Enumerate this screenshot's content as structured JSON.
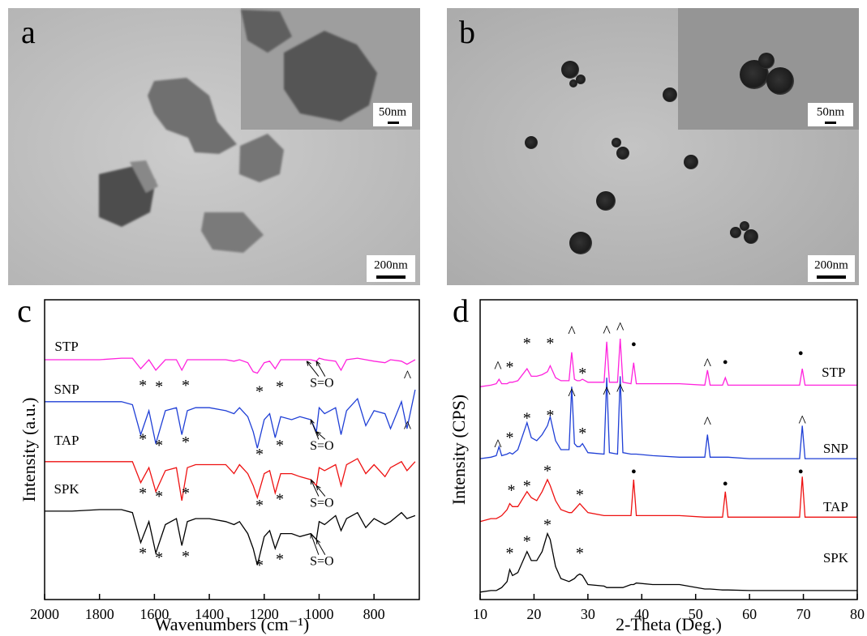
{
  "panels": [
    {
      "label": "a",
      "inset_scale": "50nm",
      "scale": "200nm"
    },
    {
      "label": "b",
      "inset_scale": "50nm",
      "scale": "200nm"
    }
  ],
  "chart_data": [
    {
      "type": "line",
      "panel_label": "c",
      "xlabel": "Wavenumbers (cm⁻¹)",
      "ylabel": "Intensity (a.u.)",
      "xlim": [
        2000,
        635
      ],
      "ylim": [
        0,
        100
      ],
      "xticks": [
        2000,
        1800,
        1600,
        1400,
        1200,
        1000,
        800
      ],
      "x": [
        2000,
        1900,
        1800,
        1720,
        1680,
        1650,
        1620,
        1595,
        1560,
        1520,
        1500,
        1480,
        1450,
        1400,
        1340,
        1310,
        1290,
        1260,
        1240,
        1225,
        1200,
        1180,
        1160,
        1140,
        1100,
        1070,
        1030,
        1010,
        1000,
        980,
        940,
        920,
        900,
        860,
        830,
        800,
        760,
        740,
        700,
        680,
        650
      ],
      "series": [
        {
          "name": "STP",
          "color": "#ff22dd",
          "label_at": [
            1920,
            84
          ],
          "values": [
            80,
            80,
            80,
            80.5,
            80.5,
            77,
            80,
            76.5,
            80,
            80,
            76.5,
            80,
            80,
            80,
            80,
            79.5,
            80,
            79,
            76,
            75.5,
            79,
            79.5,
            77,
            80,
            80,
            80,
            80,
            79.5,
            80.5,
            80,
            79.5,
            76.5,
            80,
            80.5,
            80,
            79.5,
            79,
            80,
            79.5,
            78.5,
            80
          ]
        },
        {
          "name": "SNP",
          "color": "#1f3fd6",
          "label_at": [
            1920,
            69.7
          ],
          "values": [
            66,
            66,
            66,
            66,
            65,
            55,
            63,
            52,
            63,
            64,
            55,
            63,
            64,
            64,
            63,
            62,
            64,
            61,
            56,
            50.5,
            60,
            62,
            54,
            61,
            60,
            61,
            60,
            56,
            64,
            62,
            64,
            55,
            63,
            67,
            58,
            63,
            62,
            57,
            66,
            57,
            70
          ]
        },
        {
          "name": "TAP",
          "color": "#ee1111",
          "label_at": [
            1920,
            52.7
          ],
          "values": [
            46,
            46,
            46,
            46,
            46,
            39,
            44,
            36,
            43,
            44,
            33,
            44,
            45,
            45,
            45,
            42,
            45,
            42,
            38,
            34,
            42,
            43,
            35.5,
            42,
            42,
            41,
            40,
            38,
            44,
            43,
            45,
            38,
            45,
            47,
            42,
            45,
            41,
            44,
            46,
            43,
            46
          ]
        },
        {
          "name": "SPK",
          "color": "#000000",
          "label_at": [
            1920,
            36.5
          ],
          "values": [
            29.5,
            29.5,
            30,
            30,
            29,
            19,
            26,
            15.5,
            25,
            27,
            18,
            26,
            27,
            27,
            26,
            25,
            26,
            22,
            17,
            11.5,
            21,
            23,
            17,
            22,
            22,
            21,
            22,
            20,
            26,
            25,
            28,
            23,
            27,
            29,
            24,
            27,
            25,
            26,
            29,
            27,
            28
          ]
        }
      ],
      "annotations": [
        {
          "text": "*",
          "x": 1642,
          "y": 71
        },
        {
          "text": "*",
          "x": 1583,
          "y": 70.5
        },
        {
          "text": "*",
          "x": 1486,
          "y": 71
        },
        {
          "text": "*",
          "x": 1217,
          "y": 69
        },
        {
          "text": "*",
          "x": 1143,
          "y": 70.5
        },
        {
          "text": "S=O",
          "x": 990,
          "y": 72,
          "arrows": [
            [
              1045,
              79.5
            ],
            [
              1010,
              79.5
            ]
          ]
        },
        {
          "text": "^",
          "x": 678,
          "y": 74
        },
        {
          "text": "*",
          "x": 1642,
          "y": 53
        },
        {
          "text": "*",
          "x": 1583,
          "y": 51
        },
        {
          "text": "*",
          "x": 1486,
          "y": 52
        },
        {
          "text": "*",
          "x": 1217,
          "y": 48
        },
        {
          "text": "*",
          "x": 1143,
          "y": 51
        },
        {
          "text": "S=O",
          "x": 990,
          "y": 51,
          "arrows": [
            [
              1030,
              60
            ],
            [
              1010,
              56
            ]
          ]
        },
        {
          "text": "^",
          "x": 678,
          "y": 57
        },
        {
          "text": "*",
          "x": 1642,
          "y": 35
        },
        {
          "text": "*",
          "x": 1583,
          "y": 34
        },
        {
          "text": "*",
          "x": 1486,
          "y": 35
        },
        {
          "text": "*",
          "x": 1217,
          "y": 31
        },
        {
          "text": "*",
          "x": 1143,
          "y": 33
        },
        {
          "text": "S=O",
          "x": 990,
          "y": 32,
          "arrows": [
            [
              1030,
              40
            ],
            [
              1010,
              38
            ]
          ]
        },
        {
          "text": "*",
          "x": 1642,
          "y": 15
        },
        {
          "text": "*",
          "x": 1583,
          "y": 13.5
        },
        {
          "text": "*",
          "x": 1486,
          "y": 14
        },
        {
          "text": "*",
          "x": 1217,
          "y": 11
        },
        {
          "text": "*",
          "x": 1143,
          "y": 13
        },
        {
          "text": "S=O",
          "x": 990,
          "y": 12.5,
          "arrows": [
            [
              1030,
              22
            ],
            [
              1010,
              20
            ]
          ]
        }
      ]
    },
    {
      "type": "line",
      "panel_label": "d",
      "xlabel": "2-Theta (Deg.)",
      "ylabel": "Intensity (CPS)",
      "xlim": [
        10,
        80
      ],
      "ylim": [
        0,
        100
      ],
      "xticks": [
        10,
        20,
        30,
        40,
        50,
        60,
        70,
        80
      ],
      "x": [
        10,
        12,
        13,
        13.5,
        14,
        15,
        15.5,
        16,
        17,
        18.7,
        19.5,
        20.5,
        21.5,
        22.5,
        23,
        24,
        25,
        26.5,
        27,
        27.5,
        28,
        28.5,
        29,
        30,
        33,
        33.5,
        34,
        35.5,
        36,
        36.5,
        38,
        38.5,
        39,
        42,
        47,
        51.7,
        52.2,
        52.7,
        55,
        55.5,
        56,
        60,
        65,
        69.3,
        69.8,
        70.3,
        75,
        80
      ],
      "series": [
        {
          "name": "STP",
          "color": "#ff22dd",
          "label_at": [
            75.6,
            75.4
          ],
          "values": [
            71,
            71.5,
            72,
            73.5,
            72,
            72,
            72.5,
            72.5,
            73,
            77,
            74.5,
            74.5,
            75,
            76,
            78,
            74,
            73,
            73,
            82.5,
            73.5,
            73,
            73,
            73.5,
            72.5,
            72.5,
            86,
            72.5,
            72.5,
            87,
            72.5,
            72,
            79,
            72,
            72,
            72,
            71.5,
            76.5,
            71.5,
            71.5,
            74,
            71.5,
            71.5,
            71.5,
            71.5,
            77,
            71.5,
            71.5,
            71.5
          ]
        },
        {
          "name": "SNP",
          "color": "#1f3fd6",
          "label_at": [
            76,
            50
          ],
          "values": [
            47,
            47.5,
            48,
            51,
            48,
            48.5,
            49,
            48.5,
            50,
            59,
            54,
            53,
            55,
            58,
            61,
            53,
            50,
            50,
            71,
            52,
            51,
            51,
            52,
            49,
            48.5,
            74,
            49,
            48.5,
            74.5,
            49,
            48.5,
            48.5,
            48.5,
            48,
            47.5,
            47.5,
            55,
            47.5,
            47.5,
            47.5,
            47.5,
            47,
            47,
            47,
            58,
            47,
            47,
            47
          ]
        },
        {
          "name": "TAP",
          "color": "#ee1111",
          "label_at": [
            76,
            30.5
          ],
          "values": [
            26,
            27,
            27,
            27.5,
            28,
            30,
            32,
            31,
            31,
            36,
            34,
            33,
            36,
            40,
            38,
            33,
            30,
            29,
            29,
            30,
            31,
            32,
            31,
            29,
            28,
            28,
            28,
            28,
            28,
            28,
            28,
            40,
            28,
            28,
            28,
            27.5,
            27.5,
            27.5,
            27.5,
            36,
            27.5,
            27.5,
            27.5,
            27.5,
            41,
            27.5,
            27.5,
            27.5
          ]
        },
        {
          "name": "SPK",
          "color": "#000000",
          "label_at": [
            76,
            13.5
          ],
          "values": [
            2.5,
            3,
            3,
            3.5,
            4,
            6,
            10,
            8,
            9,
            16,
            13,
            13,
            16,
            22,
            20,
            11,
            7,
            6,
            6.5,
            7,
            8,
            8.5,
            8,
            5,
            4.5,
            4,
            4,
            4,
            4,
            4,
            5,
            5,
            5.5,
            5,
            5,
            3.5,
            3.5,
            3.5,
            3.2,
            3.2,
            3.2,
            3,
            3,
            3,
            3,
            3,
            3,
            3
          ]
        }
      ],
      "annotations": [
        {
          "text": "^",
          "x": 13.3,
          "y": 77
        },
        {
          "text": "*",
          "x": 15.5,
          "y": 77
        },
        {
          "text": "*",
          "x": 18.7,
          "y": 85
        },
        {
          "text": "*",
          "x": 23,
          "y": 85
        },
        {
          "text": "^",
          "x": 27,
          "y": 88.8
        },
        {
          "text": "*",
          "x": 29,
          "y": 75
        },
        {
          "text": "^",
          "x": 33.5,
          "y": 89
        },
        {
          "text": "^",
          "x": 36,
          "y": 90
        },
        {
          "text": "•",
          "x": 38.5,
          "y": 84.5
        },
        {
          "text": "^",
          "x": 52.2,
          "y": 78
        },
        {
          "text": "•",
          "x": 55.5,
          "y": 78.5
        },
        {
          "text": "•",
          "x": 69.5,
          "y": 81.5
        },
        {
          "text": "^",
          "x": 13.3,
          "y": 51
        },
        {
          "text": "*",
          "x": 15.5,
          "y": 53.5
        },
        {
          "text": "*",
          "x": 18.7,
          "y": 60
        },
        {
          "text": "*",
          "x": 23,
          "y": 61
        },
        {
          "text": "^",
          "x": 27,
          "y": 68
        },
        {
          "text": "*",
          "x": 29,
          "y": 55
        },
        {
          "text": "^",
          "x": 33.5,
          "y": 68.5
        },
        {
          "text": "^",
          "x": 36,
          "y": 69.5
        },
        {
          "text": "^",
          "x": 52.2,
          "y": 58.5
        },
        {
          "text": "^",
          "x": 69.8,
          "y": 59
        },
        {
          "text": "*",
          "x": 15.8,
          "y": 36
        },
        {
          "text": "*",
          "x": 18.7,
          "y": 37.5
        },
        {
          "text": "*",
          "x": 22.5,
          "y": 42.5
        },
        {
          "text": "*",
          "x": 28.5,
          "y": 34.5
        },
        {
          "text": "•",
          "x": 38.5,
          "y": 42
        },
        {
          "text": "•",
          "x": 55.5,
          "y": 38
        },
        {
          "text": "•",
          "x": 69.5,
          "y": 42
        },
        {
          "text": "*",
          "x": 15.5,
          "y": 15
        },
        {
          "text": "*",
          "x": 18.7,
          "y": 19
        },
        {
          "text": "*",
          "x": 22.5,
          "y": 24.5
        },
        {
          "text": "*",
          "x": 28.5,
          "y": 15
        }
      ]
    }
  ]
}
